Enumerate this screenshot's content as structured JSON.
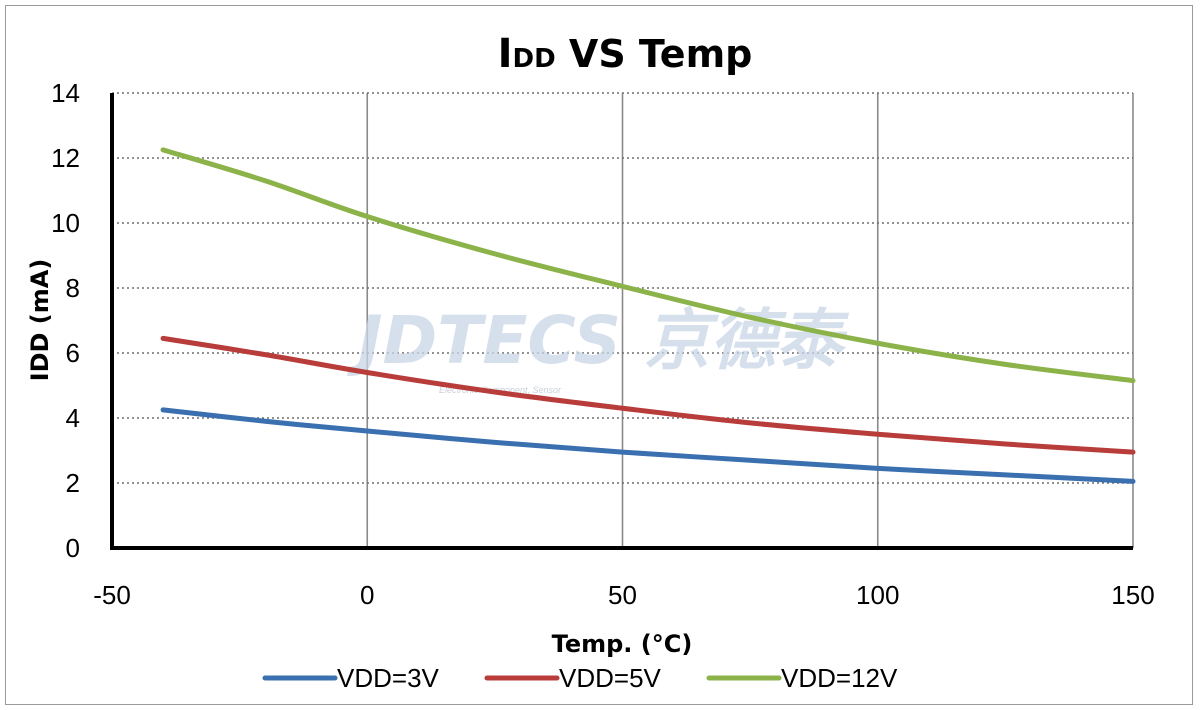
{
  "chart_data": {
    "type": "line",
    "title": "IDD  VS Temp",
    "title_main": "I",
    "title_sub": "DD",
    "title_rest": " VS Temp",
    "xlabel": "Temp. (°C)",
    "ylabel": "IDD (mA)",
    "xlim": [
      -50,
      150
    ],
    "ylim": [
      0,
      14
    ],
    "xticks": [
      -50,
      0,
      50,
      100,
      150
    ],
    "yticks": [
      0,
      2,
      4,
      6,
      8,
      10,
      12,
      14
    ],
    "x_grid": "solid",
    "y_grid": "dotted",
    "legend_position": "bottom",
    "series": [
      {
        "name": "VDD=3V",
        "color": "#3a6fb0",
        "x": [
          -40,
          -20,
          0,
          25,
          50,
          75,
          100,
          125,
          150
        ],
        "y": [
          4.25,
          3.9,
          3.6,
          3.25,
          2.95,
          2.7,
          2.45,
          2.25,
          2.05
        ]
      },
      {
        "name": "VDD=5V",
        "color": "#b83c3a",
        "x": [
          -40,
          -20,
          0,
          25,
          50,
          75,
          100,
          125,
          150
        ],
        "y": [
          6.45,
          5.95,
          5.4,
          4.8,
          4.3,
          3.85,
          3.5,
          3.2,
          2.95
        ]
      },
      {
        "name": "VDD=12V",
        "color": "#8cb34a",
        "x": [
          -40,
          -20,
          0,
          25,
          50,
          75,
          100,
          125,
          150
        ],
        "y": [
          12.25,
          11.3,
          10.2,
          9.05,
          8.05,
          7.1,
          6.3,
          5.65,
          5.15
        ]
      }
    ]
  },
  "watermark": {
    "main": "JDTECS 京德泰",
    "sub": "Electronic Component, Sensor"
  }
}
